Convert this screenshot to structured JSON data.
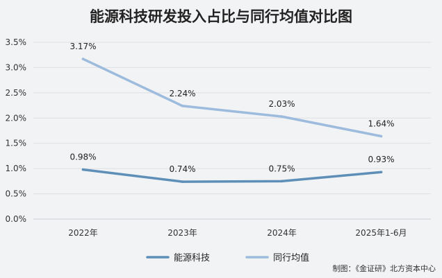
{
  "chart_data": {
    "type": "line",
    "title": "能源科技研发投入占比与同行均值对比图",
    "categories": [
      "2022年",
      "2023年",
      "2024年",
      "2025年1-6月"
    ],
    "series": [
      {
        "name": "能源科技",
        "values": [
          0.98,
          0.74,
          0.75,
          0.93
        ],
        "labels": [
          "0.98%",
          "0.74%",
          "0.75%",
          "0.93%"
        ],
        "color": "#5e8fb8"
      },
      {
        "name": "同行均值",
        "values": [
          3.17,
          2.24,
          2.03,
          1.64
        ],
        "labels": [
          "3.17%",
          "2.24%",
          "2.03%",
          "1.64%"
        ],
        "color": "#9dbbdc"
      }
    ],
    "yticks": [
      "0.0%",
      "0.5%",
      "1.0%",
      "1.5%",
      "2.0%",
      "2.5%",
      "3.0%",
      "3.5%"
    ],
    "ylim": [
      0,
      3.5
    ],
    "grid": true,
    "legend": "bottom-center",
    "xlabel": "",
    "ylabel": ""
  },
  "source": "制图：《金证研》北方资本中心"
}
